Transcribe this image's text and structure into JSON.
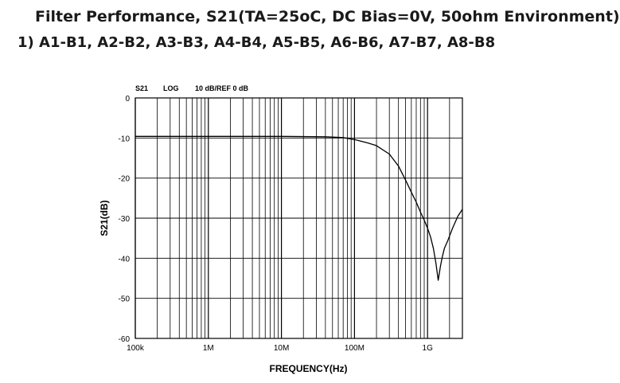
{
  "heading": {
    "line1": "Filter Performance, S21(TA=25oC, DC Bias=0V, 50ohm Environment)",
    "line2": "1) A1-B1, A2-B2, A3-B3, A4-B4, A5-B5, A6-B6, A7-B7, A8-B8"
  },
  "chart_data": {
    "type": "line",
    "header_labels": [
      "S21",
      "LOG",
      "10 dB/REF 0 dB"
    ],
    "xlabel": "FREQUENCY(Hz)",
    "ylabel": "S21(dB)",
    "x_scale": "log",
    "x_unit": "Hz",
    "xlim": [
      100000,
      3000000000
    ],
    "ylim": [
      -60,
      0
    ],
    "grid": true,
    "x_ticks": [
      {
        "value": 100000,
        "label": "100k"
      },
      {
        "value": 1000000,
        "label": "1M"
      },
      {
        "value": 10000000,
        "label": "10M"
      },
      {
        "value": 100000000,
        "label": "100M"
      },
      {
        "value": 1000000000,
        "label": "1G"
      }
    ],
    "y_ticks": [
      {
        "value": 0,
        "label": "0"
      },
      {
        "value": -10,
        "label": "-10"
      },
      {
        "value": -20,
        "label": "-20"
      },
      {
        "value": -30,
        "label": "-30"
      },
      {
        "value": -40,
        "label": "-40"
      },
      {
        "value": -50,
        "label": "-50"
      },
      {
        "value": -60,
        "label": "-60"
      }
    ],
    "series": [
      {
        "x": [
          100000,
          1000000,
          10000000,
          40000000,
          70000000,
          100000000,
          150000000,
          200000000,
          300000000,
          400000000,
          500000000,
          600000000,
          700000000,
          800000000,
          900000000,
          1000000000,
          1100000000,
          1200000000,
          1300000000,
          1400000000,
          1500000000,
          1600000000,
          1700000000,
          1900000000,
          2200000000,
          2600000000,
          3000000000
        ],
        "y": [
          -9.6,
          -9.6,
          -9.6,
          -9.7,
          -9.9,
          -10.4,
          -11.2,
          -11.9,
          -14.0,
          -17.0,
          -20.5,
          -23.5,
          -26.0,
          -28.5,
          -30.5,
          -32.5,
          -34.7,
          -37.5,
          -41.2,
          -45.5,
          -42.0,
          -39.5,
          -37.5,
          -35.5,
          -32.5,
          -29.5,
          -27.8
        ]
      }
    ],
    "colors": {
      "line": "#000000",
      "grid": "#000000",
      "frame": "#000000"
    }
  }
}
